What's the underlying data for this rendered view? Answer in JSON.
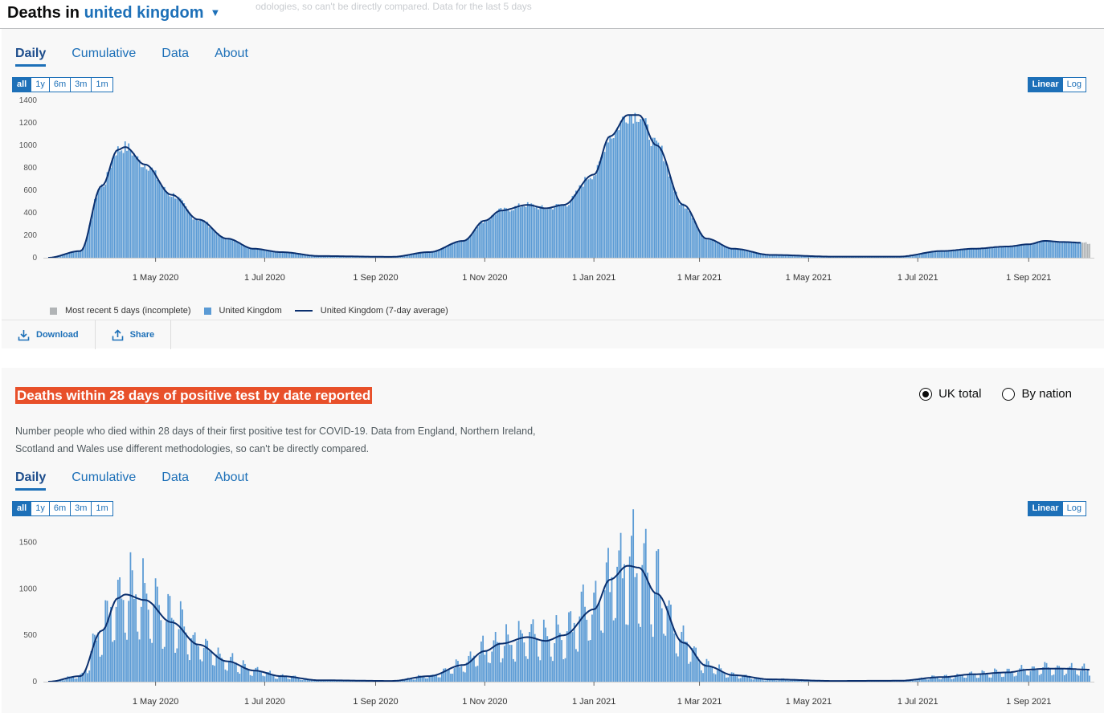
{
  "header": {
    "title_prefix": "Deaths in",
    "location": "united kingdom",
    "ghost_text": "odologies, so can't be directly compared. Data for the last 5 days"
  },
  "tabs": [
    "Daily",
    "Cumulative",
    "Data",
    "About"
  ],
  "ranges": [
    "all",
    "1y",
    "6m",
    "3m",
    "1m"
  ],
  "scales": [
    "Linear",
    "Log"
  ],
  "legend": {
    "incomplete": "Most recent 5 days (incomplete)",
    "bars": "United Kingdom",
    "average": "United Kingdom (7-day average)"
  },
  "actions": {
    "download": "Download",
    "share": "Share"
  },
  "card2": {
    "headline": "Deaths within 28 days of positive test by date reported",
    "radio_uk": "UK total",
    "radio_nation": "By nation",
    "description_1": "Number people who died within 28 days of their first positive test for COVID-19. Data from England, Northern Ireland,",
    "description_2": "Scotland and Wales use different methodologies, so can't be directly compared."
  },
  "colors": {
    "bar": "#5b9bd5",
    "avg": "#0a2f6e",
    "incomplete": "#b1b4b6",
    "accent": "#1d70b8",
    "headline_bg": "#e8502a"
  },
  "chart_data": [
    {
      "type": "bar",
      "title": "",
      "xlabel": "",
      "ylabel": "",
      "x_tick_labels": [
        "1 May 2020",
        "1 Jul 2020",
        "1 Sep 2020",
        "1 Nov 2020",
        "1 Jan 2021",
        "1 Mar 2021",
        "1 May 2021",
        "1 Jul 2021",
        "1 Sep 2021"
      ],
      "y_ticks": [
        0,
        200,
        400,
        600,
        800,
        1000,
        1200,
        1400
      ],
      "ylim": [
        0,
        1400
      ],
      "date_range": [
        "2020-03-02",
        "2021-10-05"
      ],
      "series": [
        {
          "name": "United Kingdom",
          "kind": "bar"
        },
        {
          "name": "United Kingdom (7-day average)",
          "kind": "line"
        },
        {
          "name": "Most recent 5 days (incomplete)",
          "kind": "bar"
        }
      ],
      "average_keypoints": [
        [
          "2020-03-02",
          0
        ],
        [
          "2020-03-20",
          60
        ],
        [
          "2020-04-01",
          640
        ],
        [
          "2020-04-10",
          960
        ],
        [
          "2020-04-14",
          985
        ],
        [
          "2020-04-25",
          830
        ],
        [
          "2020-05-10",
          560
        ],
        [
          "2020-05-25",
          340
        ],
        [
          "2020-06-10",
          170
        ],
        [
          "2020-06-25",
          80
        ],
        [
          "2020-07-10",
          50
        ],
        [
          "2020-08-01",
          15
        ],
        [
          "2020-09-10",
          8
        ],
        [
          "2020-10-01",
          50
        ],
        [
          "2020-10-20",
          150
        ],
        [
          "2020-11-01",
          330
        ],
        [
          "2020-11-10",
          420
        ],
        [
          "2020-11-25",
          470
        ],
        [
          "2020-12-05",
          440
        ],
        [
          "2020-12-15",
          470
        ],
        [
          "2021-01-01",
          740
        ],
        [
          "2021-01-10",
          1080
        ],
        [
          "2021-01-20",
          1270
        ],
        [
          "2021-01-26",
          1270
        ],
        [
          "2021-02-05",
          1000
        ],
        [
          "2021-02-20",
          470
        ],
        [
          "2021-03-05",
          170
        ],
        [
          "2021-03-20",
          80
        ],
        [
          "2021-04-10",
          25
        ],
        [
          "2021-05-15",
          10
        ],
        [
          "2021-06-20",
          10
        ],
        [
          "2021-07-15",
          60
        ],
        [
          "2021-08-01",
          80
        ],
        [
          "2021-08-20",
          100
        ],
        [
          "2021-09-01",
          120
        ],
        [
          "2021-09-10",
          150
        ],
        [
          "2021-09-20",
          140
        ],
        [
          "2021-10-05",
          130
        ]
      ],
      "peak_daily": 1360
    },
    {
      "type": "bar",
      "title": "",
      "xlabel": "",
      "ylabel": "",
      "x_tick_labels": [
        "1 May 2020",
        "1 Jul 2020",
        "1 Sep 2020",
        "1 Nov 2020",
        "1 Jan 2021",
        "1 Mar 2021",
        "1 May 2021",
        "1 Jul 2021",
        "1 Sep 2021"
      ],
      "y_ticks": [
        0,
        500,
        1000,
        1500
      ],
      "ylim": [
        0,
        1800
      ],
      "date_range": [
        "2020-03-02",
        "2021-10-05"
      ],
      "series": [
        {
          "name": "United Kingdom",
          "kind": "bar"
        },
        {
          "name": "United Kingdom (7-day average)",
          "kind": "line"
        }
      ],
      "average_keypoints": [
        [
          "2020-03-02",
          0
        ],
        [
          "2020-03-20",
          60
        ],
        [
          "2020-04-01",
          550
        ],
        [
          "2020-04-10",
          900
        ],
        [
          "2020-04-14",
          940
        ],
        [
          "2020-04-25",
          880
        ],
        [
          "2020-05-10",
          640
        ],
        [
          "2020-05-25",
          400
        ],
        [
          "2020-06-10",
          220
        ],
        [
          "2020-06-25",
          120
        ],
        [
          "2020-07-10",
          60
        ],
        [
          "2020-08-01",
          15
        ],
        [
          "2020-09-10",
          8
        ],
        [
          "2020-10-01",
          60
        ],
        [
          "2020-10-20",
          180
        ],
        [
          "2020-11-01",
          330
        ],
        [
          "2020-11-10",
          410
        ],
        [
          "2020-11-25",
          480
        ],
        [
          "2020-12-05",
          440
        ],
        [
          "2020-12-15",
          500
        ],
        [
          "2021-01-01",
          780
        ],
        [
          "2021-01-10",
          1100
        ],
        [
          "2021-01-20",
          1250
        ],
        [
          "2021-01-26",
          1230
        ],
        [
          "2021-02-05",
          950
        ],
        [
          "2021-02-20",
          420
        ],
        [
          "2021-03-05",
          170
        ],
        [
          "2021-03-20",
          70
        ],
        [
          "2021-04-10",
          25
        ],
        [
          "2021-05-15",
          8
        ],
        [
          "2021-06-20",
          10
        ],
        [
          "2021-07-15",
          50
        ],
        [
          "2021-08-01",
          80
        ],
        [
          "2021-08-20",
          100
        ],
        [
          "2021-09-01",
          130
        ],
        [
          "2021-09-10",
          140
        ],
        [
          "2021-09-20",
          140
        ],
        [
          "2021-10-05",
          130
        ]
      ],
      "peak_daily": 1820
    }
  ]
}
